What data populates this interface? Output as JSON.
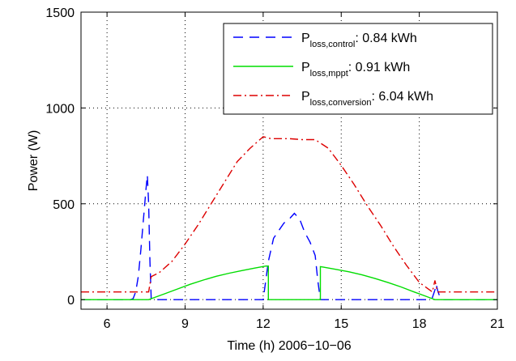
{
  "chart_data": {
    "type": "line",
    "title": "",
    "xlabel": "Time (h) 2006−10−06",
    "ylabel": "Power (W)",
    "xlim": [
      5,
      21
    ],
    "ylim": [
      -50,
      1500
    ],
    "xticks": [
      6,
      9,
      12,
      15,
      18,
      21
    ],
    "yticks": [
      0,
      500,
      1000,
      1500
    ],
    "grid": true,
    "legend_position": "top-right",
    "series": [
      {
        "name": "P_loss,control",
        "legend_main": "P",
        "legend_sub": "loss,control",
        "legend_value": ": 0.84 kWh",
        "color": "#0000ff",
        "dash": "12,8",
        "x": [
          5.0,
          6.9,
          7.0,
          7.1,
          7.2,
          7.3,
          7.4,
          7.5,
          7.55,
          7.6,
          7.65,
          7.7,
          12.0,
          12.2,
          12.4,
          12.6,
          12.8,
          13.0,
          13.2,
          13.4,
          13.6,
          13.8,
          14.0,
          14.1,
          14.2,
          18.4,
          18.5,
          18.6,
          18.65,
          18.7,
          18.8,
          18.9,
          21.0
        ],
        "y": [
          0,
          0,
          5,
          40,
          120,
          260,
          420,
          580,
          650,
          500,
          200,
          0,
          0,
          200,
          320,
          360,
          400,
          420,
          450,
          420,
          350,
          300,
          230,
          100,
          0,
          0,
          10,
          50,
          80,
          50,
          10,
          0,
          0
        ]
      },
      {
        "name": "P_loss,mppt",
        "legend_main": "P",
        "legend_sub": "loss,mppt",
        "legend_value": ": 0.91 kWh",
        "color": "#00dd00",
        "dash": "",
        "x": [
          5.0,
          7.6,
          7.7,
          8.2,
          8.7,
          9.2,
          9.7,
          10.2,
          10.7,
          11.2,
          11.7,
          12.1,
          12.2,
          12.2,
          14.2,
          14.2,
          14.3,
          14.8,
          15.3,
          15.8,
          16.3,
          16.8,
          17.3,
          17.8,
          18.2,
          18.5,
          18.6,
          21.0
        ],
        "y": [
          0,
          0,
          5,
          30,
          55,
          80,
          102,
          122,
          138,
          152,
          165,
          175,
          175,
          0,
          0,
          172,
          170,
          158,
          145,
          129,
          110,
          89,
          66,
          40,
          20,
          5,
          0,
          0
        ]
      },
      {
        "name": "P_loss,conversion",
        "legend_main": "P",
        "legend_sub": "loss,conversion",
        "legend_value": ": 6.04 kWh",
        "color": "#dd0000",
        "dash": "10,4,2,4",
        "x": [
          5.0,
          7.6,
          7.7,
          8.0,
          8.5,
          9.0,
          9.5,
          10.0,
          10.5,
          11.0,
          11.5,
          12.0,
          12.3,
          13.0,
          13.5,
          14.0,
          14.5,
          15.0,
          15.5,
          16.0,
          16.5,
          17.0,
          17.5,
          18.0,
          18.5,
          18.6,
          18.7,
          18.9,
          21.0
        ],
        "y": [
          40,
          40,
          120,
          140,
          200,
          290,
          390,
          500,
          610,
          720,
          790,
          850,
          840,
          840,
          835,
          835,
          790,
          700,
          600,
          490,
          390,
          280,
          180,
          90,
          40,
          100,
          40,
          40,
          40
        ]
      }
    ]
  }
}
